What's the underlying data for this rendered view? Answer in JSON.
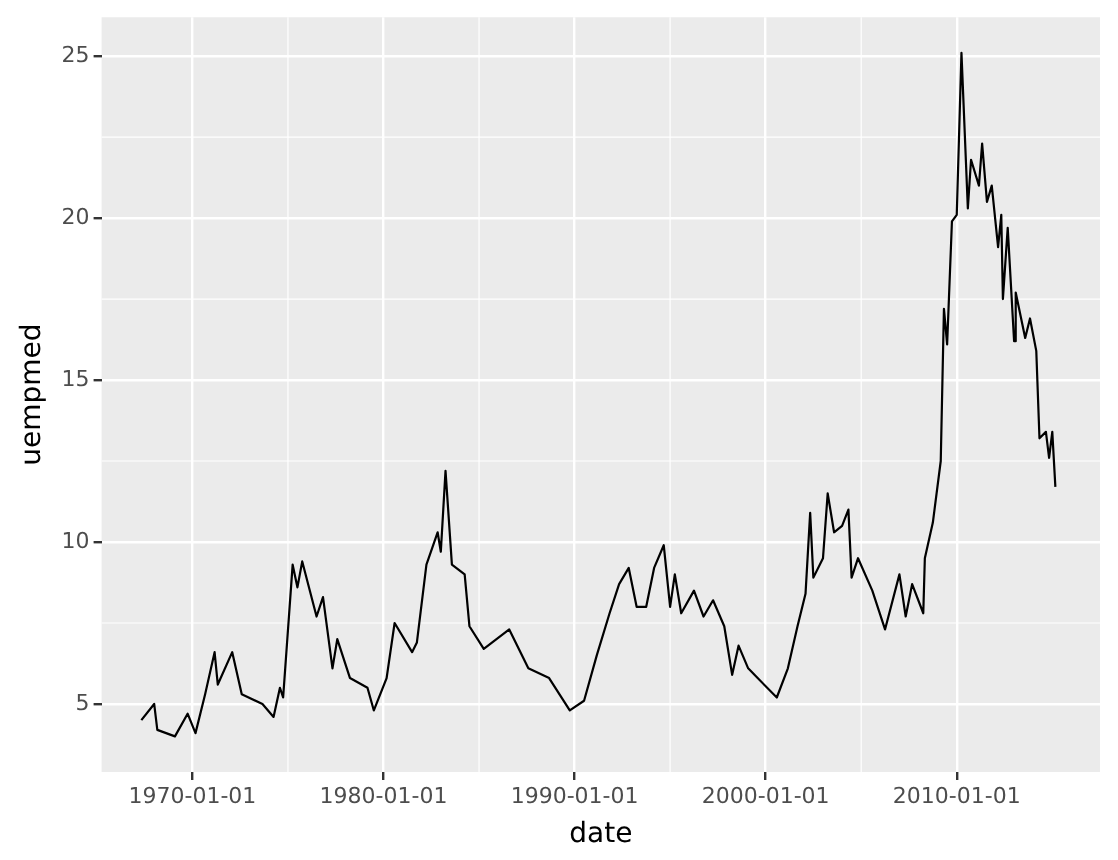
{
  "chart_data": {
    "type": "line",
    "xlabel": "date",
    "ylabel": "uempmed",
    "x": [
      "1967-05",
      "1968-01",
      "1968-03",
      "1969-02",
      "1969-10",
      "1970-03",
      "1970-09",
      "1971-03",
      "1971-05",
      "1972-02",
      "1972-08",
      "1973-09",
      "1974-04",
      "1974-08",
      "1974-10",
      "1975-04",
      "1975-07",
      "1975-10",
      "1976-07",
      "1976-11",
      "1977-05",
      "1977-08",
      "1978-04",
      "1979-03",
      "1979-07",
      "1980-03",
      "1980-08",
      "1981-07",
      "1981-10",
      "1982-04",
      "1982-11",
      "1983-01",
      "1983-04",
      "1983-08",
      "1984-04",
      "1984-07",
      "1985-04",
      "1986-08",
      "1987-08",
      "1988-09",
      "1989-10",
      "1990-07",
      "1991-03",
      "1991-11",
      "1992-05",
      "1992-11",
      "1993-04",
      "1993-10",
      "1994-03",
      "1994-09",
      "1995-01",
      "1995-04",
      "1995-08",
      "1996-04",
      "1996-10",
      "1997-04",
      "1997-11",
      "1998-04",
      "1998-08",
      "1999-02",
      "1999-08",
      "2000-08",
      "2001-03",
      "2001-09",
      "2002-02",
      "2002-05",
      "2002-07",
      "2003-01",
      "2003-04",
      "2003-08",
      "2004-01",
      "2004-05",
      "2004-07",
      "2004-11",
      "2005-08",
      "2006-04",
      "2007-01",
      "2007-05",
      "2007-09",
      "2008-04",
      "2008-05",
      "2008-10",
      "2009-03",
      "2009-05",
      "2009-07",
      "2009-10",
      "2010-01",
      "2010-04",
      "2010-08",
      "2010-10",
      "2011-03",
      "2011-05",
      "2011-08",
      "2011-11",
      "2012-03",
      "2012-05",
      "2012-06",
      "2012-09",
      "2013-01",
      "2013-02",
      "2013-08",
      "2013-11",
      "2014-03",
      "2014-05",
      "2014-09",
      "2014-11",
      "2015-01",
      "2015-03"
    ],
    "values": [
      4.5,
      5.0,
      4.2,
      4.0,
      4.7,
      4.1,
      5.3,
      6.6,
      5.6,
      6.6,
      5.3,
      5.0,
      4.6,
      5.5,
      5.2,
      9.3,
      8.6,
      9.4,
      7.7,
      8.3,
      6.1,
      7.0,
      5.8,
      5.5,
      4.8,
      5.8,
      7.5,
      6.6,
      6.9,
      9.3,
      10.3,
      9.7,
      12.2,
      9.3,
      9.0,
      7.4,
      6.7,
      7.3,
      6.1,
      5.8,
      4.8,
      5.1,
      6.5,
      7.8,
      8.7,
      9.2,
      8.0,
      8.0,
      9.2,
      9.9,
      8.0,
      9.0,
      7.8,
      8.5,
      7.7,
      8.2,
      7.4,
      5.9,
      6.8,
      6.1,
      5.8,
      5.2,
      6.1,
      7.4,
      8.4,
      10.9,
      8.9,
      9.5,
      11.5,
      10.3,
      10.5,
      11.0,
      8.9,
      9.5,
      8.5,
      7.3,
      9.0,
      7.7,
      8.7,
      7.8,
      9.5,
      10.6,
      12.5,
      17.2,
      16.1,
      19.9,
      20.1,
      25.1,
      20.3,
      21.8,
      21.0,
      22.3,
      20.5,
      21.0,
      19.1,
      20.1,
      17.5,
      19.7,
      16.2,
      17.7,
      16.3,
      16.9,
      15.9,
      13.2,
      13.4,
      12.6,
      13.4,
      11.7
    ],
    "color": "#000000",
    "xlim": [
      "1965-04",
      "2017-07"
    ],
    "xticks": [
      "1970-01-01",
      "1980-01-01",
      "1990-01-01",
      "2000-01-01",
      "2010-01-01"
    ],
    "ylim": [
      2.9,
      26.2
    ],
    "yticks": [
      5,
      10,
      15,
      20,
      25
    ],
    "grid": true,
    "legend": false,
    "marker": "none",
    "line_style": "solid"
  }
}
